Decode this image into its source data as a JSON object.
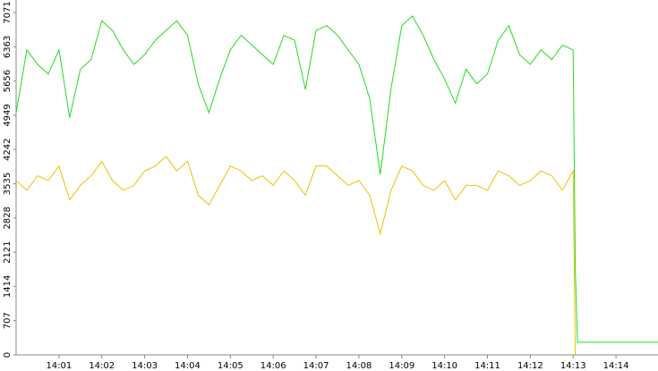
{
  "chart_data": {
    "type": "line",
    "x": [
      0,
      0.25,
      0.5,
      0.75,
      1,
      1.25,
      1.5,
      1.75,
      2,
      2.25,
      2.5,
      2.75,
      3,
      3.25,
      3.5,
      3.75,
      4,
      4.25,
      4.5,
      4.75,
      5,
      5.25,
      5.5,
      5.75,
      6,
      6.25,
      6.5,
      6.75,
      7,
      7.25,
      7.5,
      7.75,
      8,
      8.25,
      8.5,
      8.75,
      9,
      9.25,
      9.5,
      9.75,
      10,
      10.25,
      10.5,
      10.75,
      11,
      11.25,
      11.5,
      11.75,
      12,
      12.25,
      12.5,
      12.75,
      13,
      13.05,
      13.1,
      14.98
    ],
    "series": [
      {
        "color": "#22dd22",
        "values": [
          5000,
          6300,
          6000,
          5800,
          6300,
          4900,
          5900,
          6100,
          6900,
          6700,
          6300,
          6000,
          6200,
          6500,
          6700,
          6900,
          6600,
          5600,
          5000,
          5700,
          6300,
          6600,
          6400,
          6200,
          6000,
          6600,
          6500,
          5480,
          6700,
          6800,
          6600,
          6300,
          6000,
          5300,
          3730,
          5500,
          6800,
          7000,
          6600,
          6100,
          5700,
          5200,
          5900,
          5600,
          5800,
          6500,
          6800,
          6200,
          6000,
          6300,
          6100,
          6400,
          6300,
          1800,
          260,
          260
        ]
      },
      {
        "color": "#f0c000",
        "values": [
          3600,
          3400,
          3700,
          3600,
          3900,
          3200,
          3500,
          3700,
          4000,
          3600,
          3400,
          3500,
          3800,
          3900,
          4100,
          3800,
          4000,
          3300,
          3100,
          3500,
          3900,
          3800,
          3600,
          3700,
          3500,
          3800,
          3600,
          3300,
          3900,
          3900,
          3700,
          3500,
          3600,
          3300,
          2500,
          3400,
          3900,
          3800,
          3500,
          3400,
          3600,
          3200,
          3500,
          3500,
          3400,
          3800,
          3700,
          3500,
          3600,
          3800,
          3700,
          3400,
          3800,
          0,
          null,
          null
        ]
      }
    ],
    "xlim": [
      0,
      14.98
    ],
    "xticks": [
      {
        "value": 1,
        "label": "14:01"
      },
      {
        "value": 2,
        "label": "14:02"
      },
      {
        "value": 3,
        "label": "14:03"
      },
      {
        "value": 4,
        "label": "14:04"
      },
      {
        "value": 5,
        "label": "14:05"
      },
      {
        "value": 6,
        "label": "14:06"
      },
      {
        "value": 7,
        "label": "14:07"
      },
      {
        "value": 8,
        "label": "14:08"
      },
      {
        "value": 9,
        "label": "14:09"
      },
      {
        "value": 10,
        "label": "14:10"
      },
      {
        "value": 11,
        "label": "14:11"
      },
      {
        "value": 12,
        "label": "14:12"
      },
      {
        "value": 13,
        "label": "14:13"
      },
      {
        "value": 14,
        "label": "14:14"
      }
    ],
    "ylim": [
      0,
      7330
    ],
    "yticks": [
      0,
      707,
      1414,
      2121,
      2828,
      3535,
      4242,
      4949,
      5656,
      6363,
      7071
    ]
  }
}
